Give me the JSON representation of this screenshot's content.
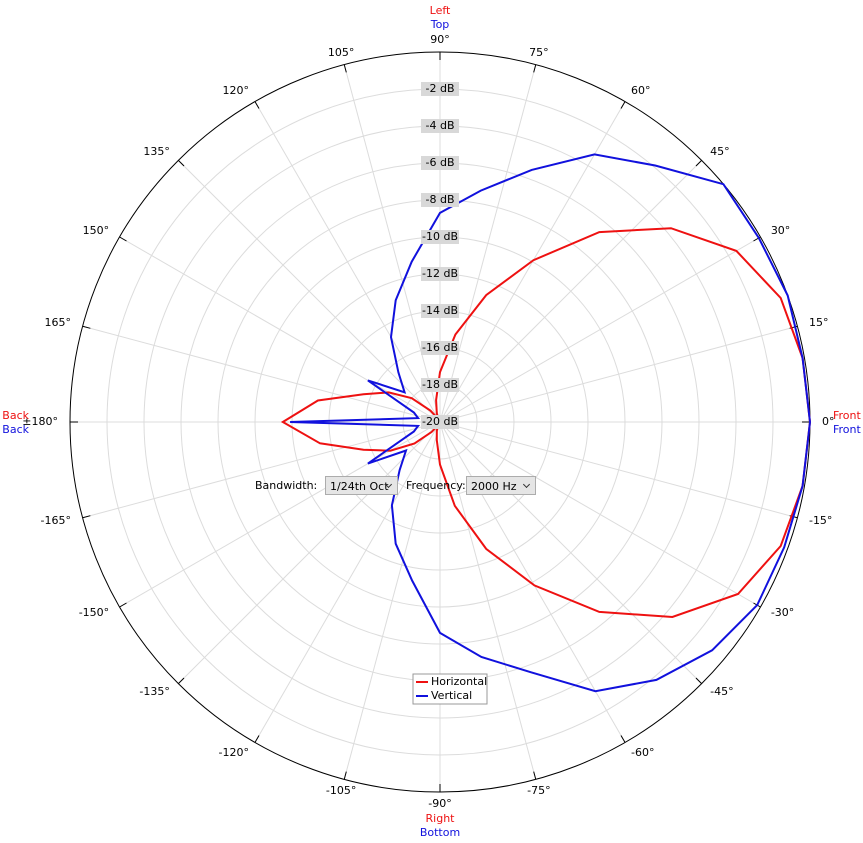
{
  "chart_data": {
    "type": "polar",
    "rlim": [
      -20,
      0
    ],
    "rticks": [
      {
        "value": -2,
        "label": "-2 dB"
      },
      {
        "value": -4,
        "label": "-4 dB"
      },
      {
        "value": -6,
        "label": "-6 dB"
      },
      {
        "value": -8,
        "label": "-8 dB"
      },
      {
        "value": -10,
        "label": "-10 dB"
      },
      {
        "value": -12,
        "label": "-12 dB"
      },
      {
        "value": -14,
        "label": "-14 dB"
      },
      {
        "value": -16,
        "label": "-16 dB"
      },
      {
        "value": -18,
        "label": "-18 dB"
      },
      {
        "value": -20,
        "label": "-20 dB"
      }
    ],
    "thetaticks": [
      {
        "value": 0,
        "label": "0°"
      },
      {
        "value": 15,
        "label": "15°"
      },
      {
        "value": 30,
        "label": "30°"
      },
      {
        "value": 45,
        "label": "45°"
      },
      {
        "value": 60,
        "label": "60°"
      },
      {
        "value": 75,
        "label": "75°"
      },
      {
        "value": 90,
        "label": "90°"
      },
      {
        "value": 105,
        "label": "105°"
      },
      {
        "value": 120,
        "label": "120°"
      },
      {
        "value": 135,
        "label": "135°"
      },
      {
        "value": 150,
        "label": "150°"
      },
      {
        "value": 165,
        "label": "165°"
      },
      {
        "value": 180,
        "label": "±180°"
      },
      {
        "value": -165,
        "label": "-165°"
      },
      {
        "value": -150,
        "label": "-150°"
      },
      {
        "value": -135,
        "label": "-135°"
      },
      {
        "value": -120,
        "label": "-120°"
      },
      {
        "value": -105,
        "label": "-105°"
      },
      {
        "value": -90,
        "label": "-90°"
      },
      {
        "value": -75,
        "label": "-75°"
      },
      {
        "value": -60,
        "label": "-60°"
      },
      {
        "value": -45,
        "label": "-45°"
      },
      {
        "value": -30,
        "label": "-30°"
      },
      {
        "value": -15,
        "label": "-15°"
      }
    ],
    "theta": [
      -170,
      -160,
      -150,
      -140,
      -130,
      -120,
      -110,
      -100,
      -90,
      -80,
      -70,
      -60,
      -50,
      -40,
      -30,
      -20,
      -10,
      0,
      10,
      20,
      30,
      40,
      50,
      60,
      70,
      80,
      90,
      100,
      110,
      120,
      130,
      140,
      150,
      160,
      170,
      180
    ],
    "series": [
      {
        "name": "Horizontal",
        "color": "#ee1111",
        "values": [
          -13.4,
          -15.6,
          -16.9,
          -18.2,
          -19.3,
          -19.8,
          -19.5,
          -19.0,
          -17.7,
          -15.4,
          -12.7,
          -9.8,
          -6.6,
          -3.6,
          -1.4,
          -0.4,
          -0.1,
          0,
          -0.1,
          -0.4,
          -1.5,
          -3.7,
          -6.6,
          -9.9,
          -12.7,
          -15.2,
          -17.3,
          -18.8,
          -19.5,
          -19.8,
          -19.2,
          -18.0,
          -16.8,
          -15.6,
          -13.3,
          -11.5
        ]
      },
      {
        "name": "Vertical",
        "color": "#1111dd",
        "values": [
          -18.8,
          -18.5,
          -15.5,
          -17.6,
          -16.6,
          -14.8,
          -13.0,
          -11.3,
          -8.6,
          -7.1,
          -5.6,
          -3.2,
          -1.8,
          -0.8,
          -0.2,
          -0.2,
          -0.1,
          0,
          -0.1,
          0,
          -0.1,
          0,
          -1.9,
          -3.3,
          -5.5,
          -7.3,
          -8.7,
          -11.2,
          -13.0,
          -14.7,
          -16.5,
          -17.5,
          -15.5,
          -18.5,
          -18.8,
          -11.9
        ]
      }
    ],
    "direction_labels": {
      "top": [
        {
          "text": "Left",
          "color": "#ee1111"
        },
        {
          "text": "Top",
          "color": "#1111dd"
        }
      ],
      "bottom": [
        {
          "text": "Right",
          "color": "#ee1111"
        },
        {
          "text": "Bottom",
          "color": "#1111dd"
        }
      ],
      "right": [
        {
          "text": "Front",
          "color": "#ee1111"
        },
        {
          "text": "Front",
          "color": "#1111dd"
        }
      ],
      "left": [
        {
          "text": "Back",
          "color": "#ee1111"
        },
        {
          "text": "Back",
          "color": "#1111dd"
        }
      ]
    },
    "grid": true,
    "legend": "bottom"
  },
  "controls": {
    "bandwidth": {
      "label": "Bandwidth:",
      "value": "1/24th Oct"
    },
    "frequency": {
      "label": "Frequency:",
      "value": "2000 Hz"
    }
  }
}
